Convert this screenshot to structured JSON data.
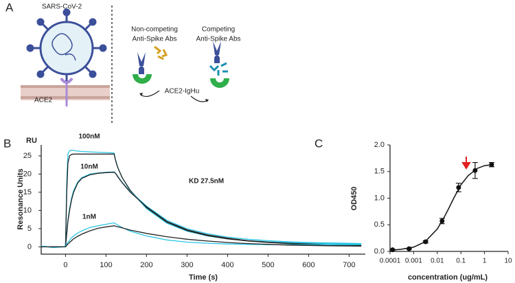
{
  "diagram": {
    "label": "A",
    "virus": "SARS-CoV-2",
    "receptor": "ACE2",
    "non_competing": [
      "Non-competing",
      "Anti-Spike Abs"
    ],
    "competing": [
      "Competing",
      "Anti-Spike Abs"
    ],
    "fusion": "ACE2-IgHu"
  },
  "chart_data": [
    {
      "type": "line",
      "panel": "B",
      "unit_label": "RU",
      "y_label": "Resonance Units",
      "x_label": "Time (s)",
      "annotations": [
        "100nM",
        "10nM",
        "KD 27.5nM",
        "1nM"
      ],
      "xlim": [
        -60,
        740
      ],
      "xticks": [
        0,
        100,
        200,
        300,
        400,
        500,
        600,
        700
      ],
      "ylim": [
        -2,
        28
      ],
      "yticks": [
        0,
        5,
        10,
        15,
        20,
        25
      ],
      "x": [
        -60,
        -30,
        -5,
        0,
        3,
        6,
        10,
        15,
        20,
        30,
        40,
        60,
        80,
        100,
        120,
        123,
        126,
        130,
        140,
        160,
        200,
        250,
        300,
        350,
        400,
        450,
        500,
        550,
        600,
        650,
        700,
        730
      ],
      "series": [
        {
          "color": "#29c5e6",
          "values": [
            0.2,
            -0.2,
            0,
            0.3,
            18,
            25.5,
            26.4,
            26.6,
            26.5,
            26.3,
            26.2,
            26.1,
            26,
            25.9,
            25.8,
            24,
            23,
            21.5,
            19,
            15.5,
            10.5,
            6.5,
            4.3,
            3,
            2.2,
            1.7,
            1.4,
            1.2,
            1,
            0.9,
            0.8,
            0.8
          ]
        },
        {
          "color": "#222222",
          "values": [
            0,
            0,
            0,
            0,
            15,
            23,
            25,
            25.4,
            25.5,
            25.5,
            25.5,
            25.5,
            25.5,
            25.5,
            25.5,
            24,
            22.8,
            21.5,
            19,
            15.5,
            10.8,
            6.8,
            4.5,
            3.1,
            2.2,
            1.6,
            1.2,
            0.9,
            0.7,
            0.5,
            0.4,
            0.4
          ]
        },
        {
          "color": "#29c5e6",
          "values": [
            0.2,
            -0.1,
            0,
            0.2,
            4,
            7.5,
            10.5,
            13.5,
            15.5,
            17.8,
            19,
            20,
            20.3,
            20.5,
            20.6,
            20.3,
            19.9,
            19.2,
            17.7,
            15.2,
            11.2,
            7.3,
            5,
            3.6,
            2.7,
            2.1,
            1.7,
            1.4,
            1.2,
            1.1,
            1,
            0.9
          ]
        },
        {
          "color": "#222222",
          "values": [
            0,
            0,
            0,
            0,
            3.5,
            7,
            10,
            13,
            15,
            17.5,
            18.8,
            19.8,
            20.2,
            20.4,
            20.5,
            20.2,
            19.8,
            19.1,
            17.6,
            15,
            11,
            7,
            4.7,
            3.3,
            2.4,
            1.7,
            1.3,
            1,
            0.8,
            0.6,
            0.5,
            0.4
          ]
        },
        {
          "color": "#29c5e6",
          "values": [
            0.2,
            -0.1,
            0,
            0.2,
            0.7,
            1.2,
            1.8,
            2.5,
            3,
            3.8,
            4.4,
            5.3,
            5.8,
            6.2,
            6.6,
            6.4,
            6.2,
            5.9,
            5.3,
            4.3,
            3,
            1.9,
            1.3,
            1,
            0.8,
            0.7,
            0.6,
            0.6,
            0.6,
            0.6,
            0.6,
            0.6
          ]
        },
        {
          "color": "#222222",
          "values": [
            0,
            0,
            0,
            0,
            0.4,
            0.8,
            1.2,
            1.7,
            2.2,
            2.9,
            3.5,
            4.4,
            5.1,
            5.5,
            5.8,
            5.7,
            5.6,
            5.5,
            5.2,
            4.6,
            3.7,
            2.8,
            2.1,
            1.6,
            1.2,
            0.9,
            0.7,
            0.5,
            0.4,
            0.3,
            0.25,
            0.2
          ]
        }
      ]
    },
    {
      "type": "scatter",
      "panel": "C",
      "y_label": "OD450",
      "x_label": "concentration (ug/mL)",
      "log_x": true,
      "xlim": [
        0.0001,
        10
      ],
      "xticks": [
        0.0001,
        0.001,
        0.01,
        0.1,
        1,
        10
      ],
      "ylim": [
        0,
        2
      ],
      "yticks": [
        {
          "value": 0,
          "label": "0.0"
        },
        {
          "value": 0.5,
          "label": "0.5"
        },
        {
          "value": 1,
          "label": "1.0"
        },
        {
          "value": 1.5,
          "label": "1.5"
        },
        {
          "value": 2,
          "label": "2.0"
        }
      ],
      "series": [
        {
          "color": "#111111",
          "x": [
            0.000128,
            0.00064,
            0.0032,
            0.016,
            0.08,
            0.4,
            2
          ],
          "values": [
            0.03,
            0.05,
            0.18,
            0.57,
            1.2,
            1.52,
            1.63
          ],
          "errors": [
            0.01,
            0.01,
            0.02,
            0.05,
            0.08,
            0.15,
            0.04
          ]
        }
      ],
      "fit": {
        "color": "#111111",
        "x": [
          0.0001,
          0.0003,
          0.001,
          0.003,
          0.01,
          0.02,
          0.03,
          0.05,
          0.1,
          0.2,
          0.5,
          1,
          2
        ],
        "values": [
          0.02,
          0.04,
          0.08,
          0.18,
          0.42,
          0.65,
          0.8,
          1.0,
          1.25,
          1.42,
          1.56,
          1.61,
          1.63
        ]
      }
    }
  ]
}
